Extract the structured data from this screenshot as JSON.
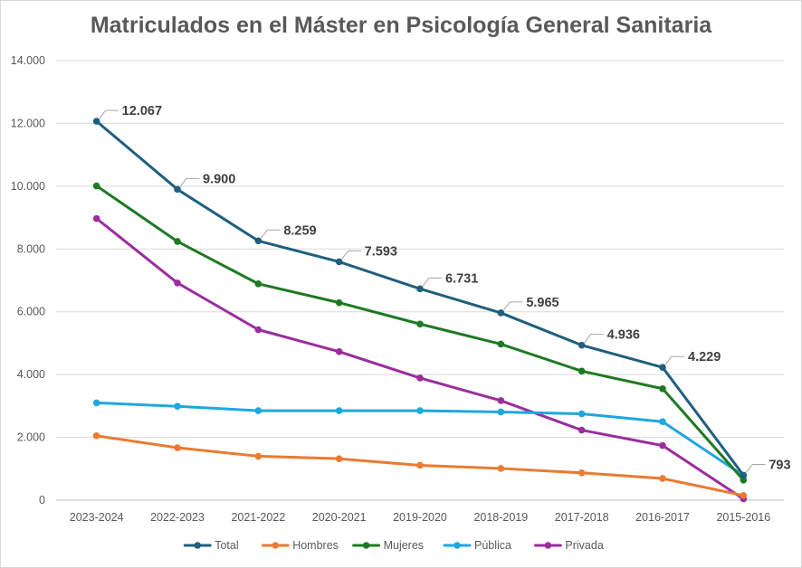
{
  "chart_data": {
    "type": "line",
    "title": "Matriculados en el Máster en Psicología General Sanitaria",
    "xlabel": "",
    "ylabel": "",
    "categories": [
      "2023-2024",
      "2022-2023",
      "2021-2022",
      "2020-2021",
      "2019-2020",
      "2018-2019",
      "2017-2018",
      "2016-2017",
      "2015-2016"
    ],
    "ylim": [
      0,
      14000
    ],
    "yticks": [
      0,
      2000,
      4000,
      6000,
      8000,
      10000,
      12000,
      14000
    ],
    "ytick_labels": [
      "0",
      "2.000",
      "4.000",
      "6.000",
      "8.000",
      "10.000",
      "12.000",
      "14.000"
    ],
    "grid": true,
    "legend_position": "bottom",
    "series": [
      {
        "name": "Total",
        "color": "#1f5f7f",
        "values": [
          12067,
          9900,
          8259,
          7593,
          6731,
          5965,
          4936,
          4229,
          793
        ],
        "labels": [
          "12.067",
          "9.900",
          "8.259",
          "7.593",
          "6.731",
          "5.965",
          "4.936",
          "4.229",
          "793"
        ]
      },
      {
        "name": "Hombres",
        "color": "#e97b32",
        "values": [
          2050,
          1670,
          1400,
          1320,
          1110,
          1010,
          870,
          690,
          150
        ]
      },
      {
        "name": "Mujeres",
        "color": "#1e7a22",
        "values": [
          10010,
          8240,
          6890,
          6290,
          5610,
          4970,
          4110,
          3550,
          640
        ]
      },
      {
        "name": "Pública",
        "color": "#1ea7e0",
        "values": [
          3100,
          2990,
          2850,
          2850,
          2850,
          2810,
          2750,
          2500,
          780
        ]
      },
      {
        "name": "Privada",
        "color": "#9b2d9e",
        "values": [
          8970,
          6920,
          5430,
          4730,
          3890,
          3170,
          2230,
          1740,
          40
        ]
      }
    ]
  }
}
